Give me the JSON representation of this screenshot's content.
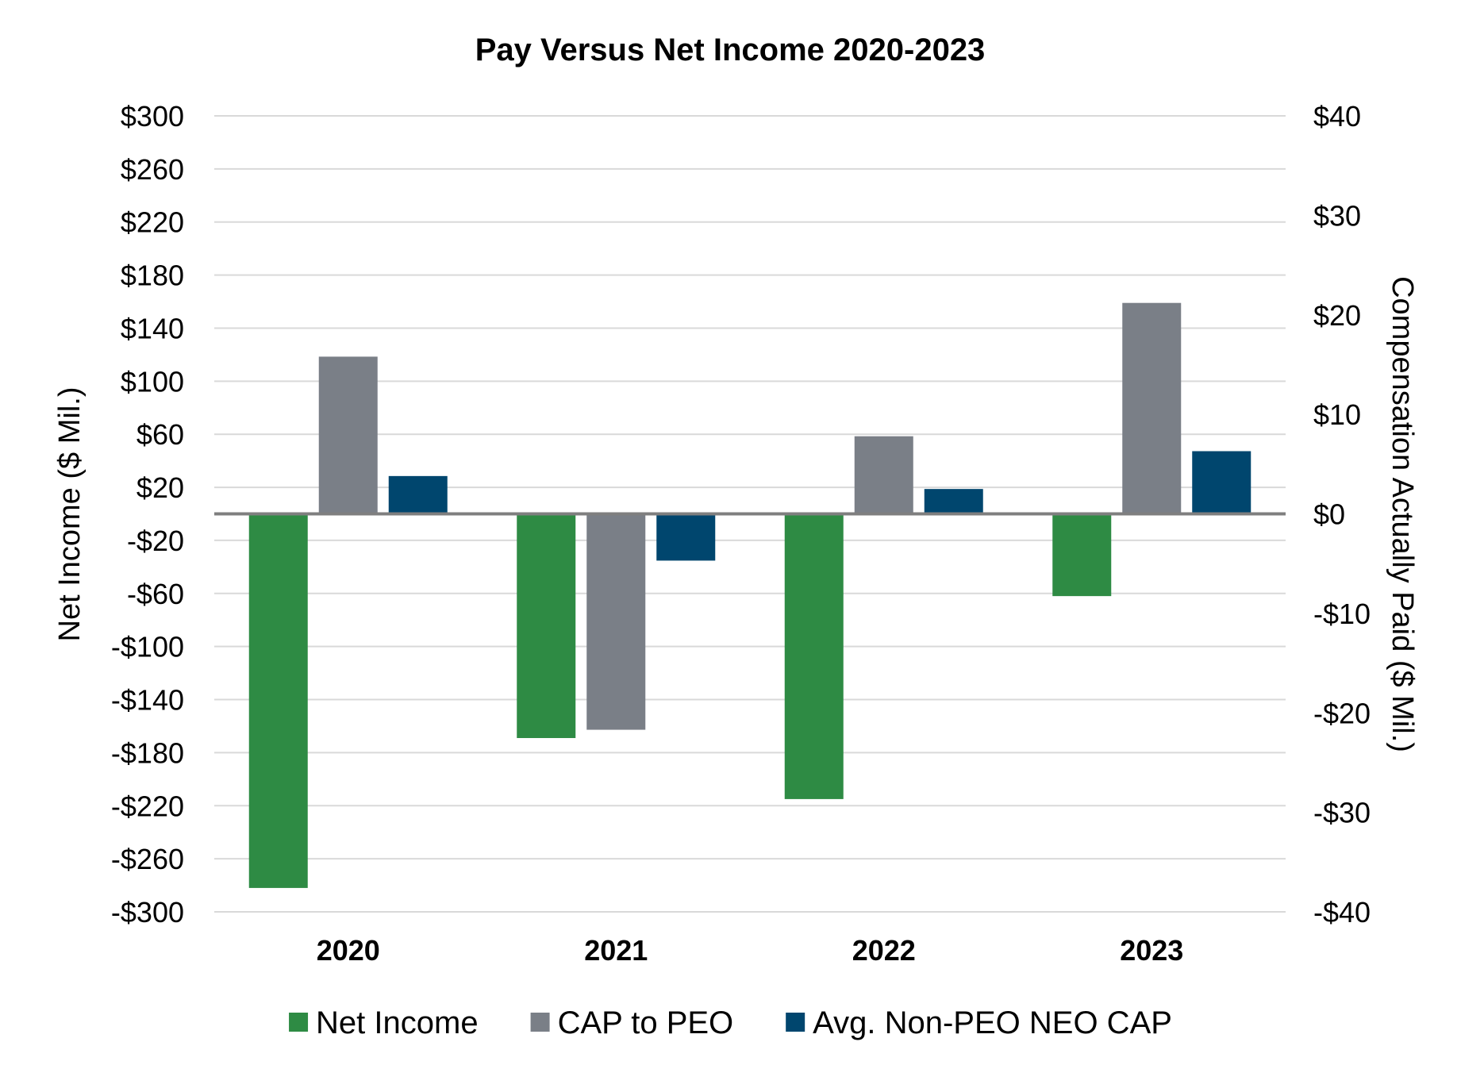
{
  "chart_data": {
    "type": "bar",
    "title": "Pay Versus Net Income 2020-2023",
    "categories": [
      "2020",
      "2021",
      "2022",
      "2023"
    ],
    "y_left": {
      "label": "Net Income ($ Mil.)",
      "range": [
        -300,
        300
      ],
      "ticks": [
        300,
        260,
        220,
        180,
        140,
        100,
        60,
        20,
        -20,
        -60,
        -100,
        -140,
        -180,
        -220,
        -260,
        -300
      ],
      "tick_labels": [
        "$300",
        "$260",
        "$220",
        "$180",
        "$140",
        "$100",
        "$60",
        "$20",
        "-$20",
        "-$60",
        "-$100",
        "-$140",
        "-$180",
        "-$220",
        "-$260",
        "-$300"
      ]
    },
    "y_right": {
      "label": "Compensation Actually Paid ($ Mil.)",
      "range": [
        -40,
        40
      ],
      "ticks": [
        40,
        30,
        20,
        10,
        0,
        -10,
        -20,
        -30,
        -40
      ],
      "tick_labels": [
        "$40",
        "$30",
        "$20",
        "$10",
        "$0",
        "-$10",
        "-$20",
        "-$30",
        "-$40"
      ]
    },
    "series": [
      {
        "name": "Net Income",
        "axis": "left",
        "color": "#2e8b44",
        "values": [
          -282,
          -169,
          -215,
          -62
        ]
      },
      {
        "name": "CAP to PEO",
        "axis": "right",
        "color": "#7a7f87",
        "values": [
          15.8,
          -21.7,
          7.8,
          21.2
        ]
      },
      {
        "name": "Avg. Non-PEO NEO CAP",
        "axis": "right",
        "color": "#00466e",
        "values": [
          3.8,
          -4.7,
          2.5,
          6.3
        ]
      }
    ],
    "legend": {
      "position": "bottom"
    },
    "grid": true
  }
}
